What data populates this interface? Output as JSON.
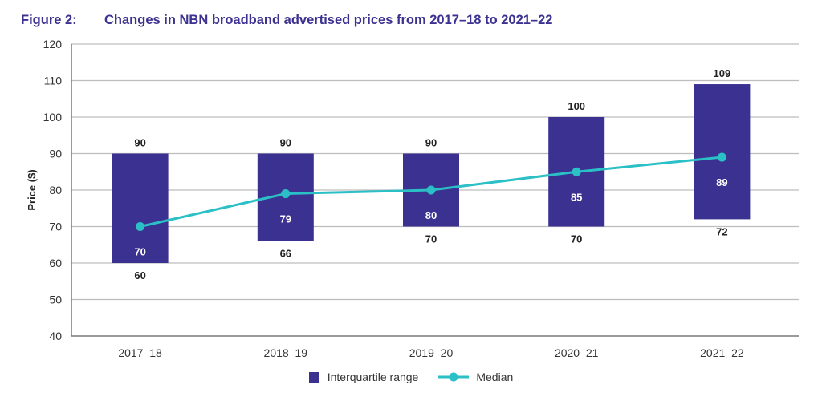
{
  "figure": {
    "number": "Figure 2:",
    "title": "Changes in NBN broadband advertised prices from 2017–18 to 2021–22"
  },
  "colors": {
    "title": "#3b3190",
    "bar": "#3b3190",
    "median": "#2bbfc6",
    "grid": "#bdbdbd",
    "axis": "#7a7a7a"
  },
  "chart_data": {
    "type": "bar",
    "subtype": "floating-range-with-line",
    "title": "Changes in NBN broadband advertised prices from 2017–18 to 2021–22",
    "xlabel": "",
    "ylabel": "Price ($)",
    "ylim": [
      40,
      120
    ],
    "yticks": [
      40,
      50,
      60,
      70,
      80,
      90,
      100,
      110,
      120
    ],
    "grid": true,
    "categories": [
      "2017–18",
      "2018–19",
      "2019–20",
      "2020–21",
      "2021–22"
    ],
    "series": [
      {
        "name": "Interquartile range",
        "type": "range-bar",
        "low": [
          60,
          66,
          70,
          70,
          72
        ],
        "high": [
          90,
          90,
          90,
          100,
          109
        ]
      },
      {
        "name": "Median",
        "type": "line",
        "values": [
          70,
          79,
          80,
          85,
          89
        ]
      }
    ],
    "legend": {
      "position": "bottom-center",
      "entries": [
        "Interquartile range",
        "Median"
      ]
    }
  }
}
